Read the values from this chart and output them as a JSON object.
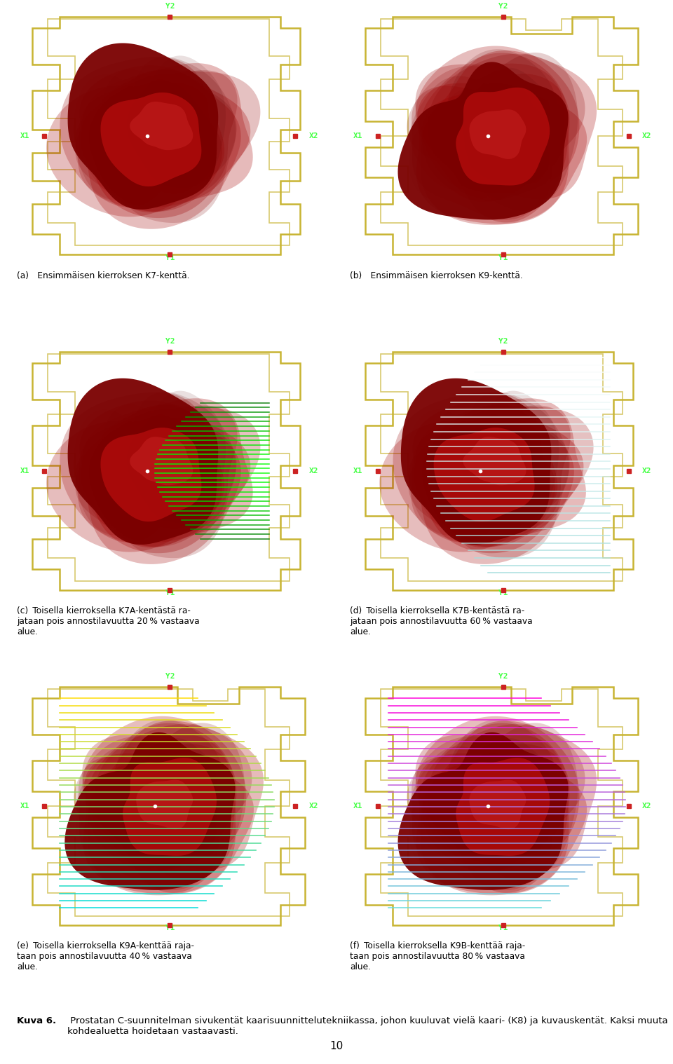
{
  "figure_size": [
    9.6,
    15.18
  ],
  "dpi": 100,
  "bg_color": "#ffffff",
  "panel_bg": "#000000",
  "caption_a": "(a) Ensimmäisen kierroksen K7-kenttä.",
  "caption_b": "(b) Ensimmäisen kierroksen K9-kenttä.",
  "caption_c": "(c) Toisella kierroksella K7A-kentästä ra-\njataan pois annostilavuutta 20 % vastaava\nalue.",
  "caption_d": "(d) Toisella kierroksella K7B-kentästä ra-\njataan pois annostilavuutta 60 % vastaava\nalue.",
  "caption_e": "(e) Toisella kierroksella K9A-kenttää raja-\ntaan pois annostilavuutta 40 % vastaava\nalue.",
  "caption_f": "(f) Toisella kierroksella K9B-kenttää raja-\ntaan pois annostilavuutta 80 % vastaava\nalue.",
  "figure_caption_bold": "Kuva 6.",
  "figure_caption_rest": " Prostatan C-suunnitelman sivukentät kaarisuunnittelutekniikassa, johon kuuluvat vielä kaari- (K8) ja kuvauskentät. Kaksi muuta kohdealuetta hoidetaan vastaavasti.",
  "page_number": "10",
  "yellow_color": "#c8b432",
  "green_label_color": "#44ff44",
  "red_marker_color": "#cc2222",
  "white_dot_color": "#ffffff"
}
